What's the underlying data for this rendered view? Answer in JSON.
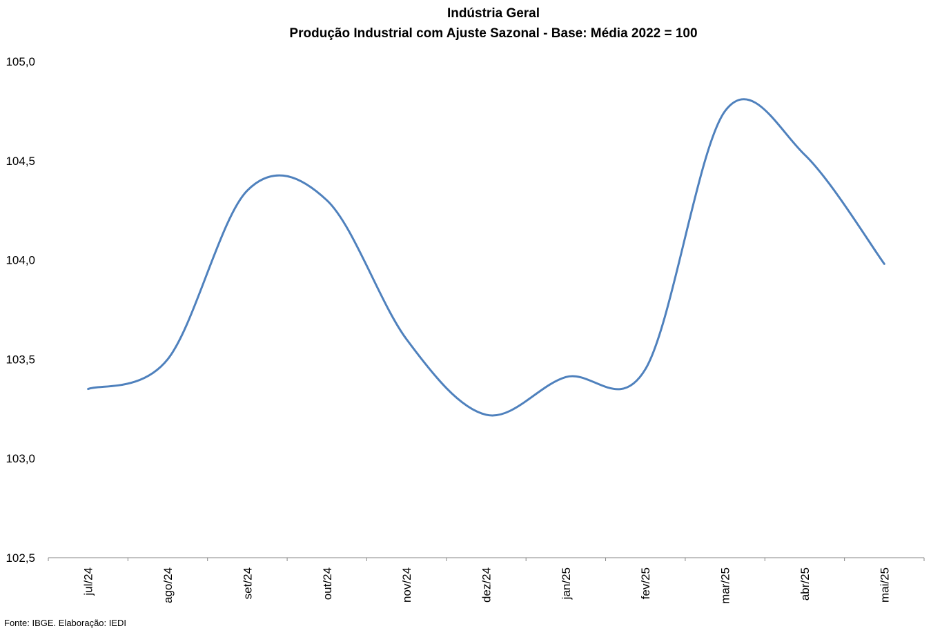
{
  "title": {
    "line1": "Indústria Geral",
    "line2": "Produção Industrial com Ajuste Sazonal - Base: Média 2022 = 100"
  },
  "source": "Fonte: IBGE. Elaboração: IEDI",
  "colors": {
    "line": "#4f81bd",
    "axis": "#868686"
  },
  "chart_data": {
    "type": "line",
    "title": "Indústria Geral / Produção Industrial com Ajuste Sazonal - Base: Média 2022 = 100",
    "xlabel": "",
    "ylabel": "",
    "categories": [
      "jul/24",
      "ago/24",
      "set/24",
      "out/24",
      "nov/24",
      "dez/24",
      "jan/25",
      "fev/25",
      "mar/25",
      "abr/25",
      "mai/25"
    ],
    "series": [
      {
        "values": [
          103.35,
          103.5,
          104.35,
          104.3,
          103.6,
          103.22,
          103.41,
          103.45,
          104.75,
          104.53,
          103.98
        ],
        "smooth": true
      }
    ],
    "ylim": [
      102.5,
      105.0
    ],
    "yticks": [
      102.5,
      103.0,
      103.5,
      104.0,
      104.5,
      105.0
    ],
    "ytick_labels": [
      "102,5",
      "103,0",
      "103,5",
      "104,0",
      "104,5",
      "105,0"
    ],
    "grid": false,
    "legend": "none"
  }
}
